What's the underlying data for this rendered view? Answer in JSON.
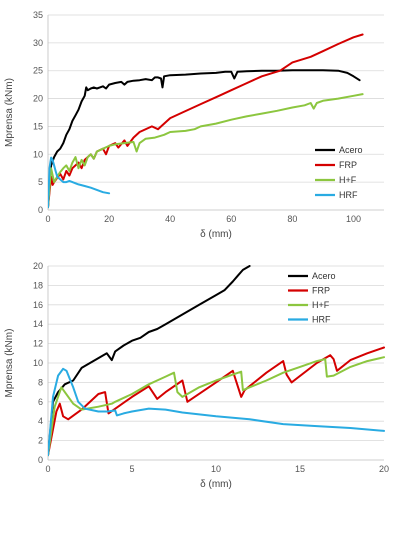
{
  "chart_data": [
    {
      "type": "line",
      "xlabel": "δ (mm)",
      "ylabel": "Mprensa (kNm)",
      "xlim": [
        0,
        110
      ],
      "ylim": [
        0,
        35
      ],
      "xticks": [
        0,
        20,
        40,
        60,
        80,
        100
      ],
      "yticks": [
        0,
        5,
        10,
        15,
        20,
        25,
        30,
        35
      ],
      "grid": "horizontal",
      "legend_position": "bottom-right",
      "series": [
        {
          "name": "Acero",
          "color": "#000000",
          "x": [
            0,
            1,
            2,
            3,
            4,
            5,
            6,
            7,
            8,
            9,
            10,
            11,
            12,
            12.5,
            13,
            14,
            15,
            16,
            17,
            18,
            19,
            20,
            22,
            24,
            25,
            26,
            28,
            30,
            32,
            34,
            35,
            36,
            37,
            37.5,
            38,
            40,
            45,
            50,
            55,
            58,
            60,
            61,
            62,
            65,
            70,
            75,
            80,
            85,
            90,
            95,
            98,
            100,
            102
          ],
          "y": [
            0.5,
            8,
            9.5,
            10.5,
            11,
            12,
            13.5,
            14.5,
            16,
            17,
            18,
            19.5,
            20.5,
            22,
            21.5,
            21.8,
            22,
            21.8,
            22,
            22.2,
            21.8,
            22.5,
            22.8,
            23,
            22.5,
            23,
            23.2,
            23.3,
            23.5,
            23.3,
            23.8,
            23.8,
            23.6,
            22,
            24,
            24.2,
            24.3,
            24.5,
            24.6,
            24.8,
            24.8,
            23.6,
            24.8,
            24.9,
            25,
            25,
            25.1,
            25.1,
            25.1,
            25,
            24.6,
            24,
            23.3
          ]
        },
        {
          "name": "FRP",
          "color": "#d40000",
          "x": [
            0,
            1,
            1.5,
            2,
            4,
            5,
            6,
            7,
            8,
            10,
            11,
            12,
            14,
            15,
            16,
            18,
            19,
            20,
            22,
            23,
            25,
            26,
            28,
            30,
            34,
            36,
            40,
            44,
            50,
            56,
            60,
            64,
            70,
            76,
            80,
            86,
            90,
            95,
            100,
            103
          ],
          "y": [
            0.5,
            6,
            4.5,
            5,
            6.5,
            5.5,
            7,
            6.2,
            7.5,
            8.5,
            7.5,
            9,
            10,
            9.2,
            10.5,
            11,
            10,
            11.5,
            12,
            11.2,
            12.5,
            11.5,
            13,
            14,
            15,
            14.5,
            16.5,
            17.5,
            19,
            20.5,
            21.5,
            22.5,
            24,
            25,
            26.5,
            27.5,
            28.5,
            29.8,
            31,
            31.5
          ]
        },
        {
          "name": "H+F",
          "color": "#8cc63f",
          "x": [
            0,
            1,
            2,
            3,
            4,
            5,
            6,
            7,
            8,
            9,
            10,
            11,
            12,
            13,
            14,
            15,
            16,
            18,
            20,
            22,
            25,
            28,
            29,
            30,
            32,
            35,
            38,
            40,
            45,
            48,
            50,
            55,
            60,
            65,
            70,
            75,
            80,
            84,
            86,
            87,
            88,
            90,
            95,
            100,
            103
          ],
          "y": [
            0.5,
            7.5,
            5,
            6,
            6.8,
            7.5,
            8,
            7,
            8.5,
            9.5,
            7.5,
            9,
            8,
            9.5,
            10,
            9.2,
            10.5,
            11,
            11.5,
            11.8,
            12,
            12.2,
            10.5,
            12,
            12.8,
            13,
            13.5,
            14,
            14.2,
            14.5,
            15,
            15.5,
            16.2,
            16.8,
            17.3,
            17.8,
            18.4,
            18.8,
            19.2,
            18.2,
            19.2,
            19.6,
            20,
            20.5,
            20.8
          ]
        },
        {
          "name": "HRF",
          "color": "#29abe2",
          "x": [
            0,
            0.5,
            1,
            1.5,
            2,
            2.5,
            3,
            4,
            5,
            6,
            7,
            8,
            9,
            10,
            12,
            14,
            16,
            18,
            20
          ],
          "y": [
            0.5,
            7.5,
            9.4,
            9,
            8,
            7,
            6,
            5.5,
            5,
            5,
            5.2,
            5,
            4.8,
            4.6,
            4.3,
            4,
            3.6,
            3.2,
            3
          ]
        }
      ]
    },
    {
      "type": "line",
      "xlabel": "δ (mm)",
      "ylabel": "Mprensa (kNm)",
      "xlim": [
        0,
        20
      ],
      "ylim": [
        0,
        20
      ],
      "xticks": [
        0,
        5,
        10,
        15,
        20
      ],
      "yticks": [
        0,
        2,
        4,
        6,
        8,
        10,
        12,
        14,
        16,
        18,
        20
      ],
      "grid": "horizontal",
      "legend_position": "top-right",
      "series": [
        {
          "name": "Acero",
          "color": "#000000",
          "x": [
            0,
            0.3,
            0.6,
            1,
            1.5,
            2,
            2.5,
            3,
            3.5,
            3.8,
            4,
            4.5,
            5,
            5.5,
            6,
            6.5,
            7,
            8,
            9,
            10,
            10.5,
            11,
            11.3,
            11.6,
            12
          ],
          "y": [
            0.5,
            6,
            7,
            7.8,
            8.2,
            9.5,
            10,
            10.5,
            11,
            10.3,
            11.2,
            11.8,
            12.3,
            12.6,
            13.2,
            13.5,
            14,
            15,
            16,
            17,
            17.5,
            18.4,
            19,
            19.6,
            20
          ]
        },
        {
          "name": "FRP",
          "color": "#d40000",
          "x": [
            0,
            0.5,
            0.7,
            0.9,
            1.2,
            2,
            3,
            3.4,
            3.6,
            5,
            6,
            6.5,
            7,
            8,
            8.3,
            10,
            11,
            11.5,
            11.7,
            13,
            14,
            14.2,
            14.5,
            16,
            16.8,
            17,
            17.2,
            18,
            19,
            20
          ],
          "y": [
            0.5,
            5,
            5.8,
            4.5,
            4.2,
            5.2,
            6.8,
            7,
            4.8,
            6.5,
            7.6,
            6.3,
            7,
            8.2,
            6,
            8,
            9.2,
            6.5,
            7.2,
            9,
            10.2,
            8.8,
            8,
            10,
            10.8,
            10.4,
            9.2,
            10.3,
            11,
            11.6
          ]
        },
        {
          "name": "H+F",
          "color": "#8cc63f",
          "x": [
            0,
            0.4,
            0.8,
            1,
            1.5,
            2,
            3,
            3.8,
            4,
            5,
            6,
            7,
            7.5,
            7.7,
            8,
            9,
            10,
            11,
            11.5,
            11.6,
            12,
            13,
            14,
            15,
            16,
            16.5,
            16.6,
            17,
            18,
            19,
            20
          ],
          "y": [
            0.5,
            5.5,
            7.5,
            7,
            5.8,
            5.2,
            5.5,
            5.8,
            6,
            6.8,
            7.8,
            8.6,
            9,
            7,
            6.5,
            7.5,
            8.2,
            8.8,
            9.1,
            7.2,
            7.5,
            8.2,
            9,
            9.6,
            10.2,
            10.4,
            8.6,
            8.7,
            9.6,
            10.2,
            10.6
          ]
        },
        {
          "name": "HRF",
          "color": "#29abe2",
          "x": [
            0,
            0.3,
            0.6,
            0.9,
            1.1,
            1.5,
            1.8,
            2.2,
            3,
            3.5,
            4,
            4.1,
            4.5,
            5,
            6,
            7,
            8,
            9,
            10,
            12,
            14,
            16,
            18,
            20
          ],
          "y": [
            0.5,
            6.5,
            8.7,
            9.4,
            9.2,
            7.5,
            6,
            5.3,
            5,
            5,
            5.1,
            4.6,
            4.8,
            5,
            5.3,
            5.2,
            4.9,
            4.7,
            4.5,
            4.2,
            3.7,
            3.5,
            3.3,
            3
          ]
        }
      ]
    }
  ]
}
